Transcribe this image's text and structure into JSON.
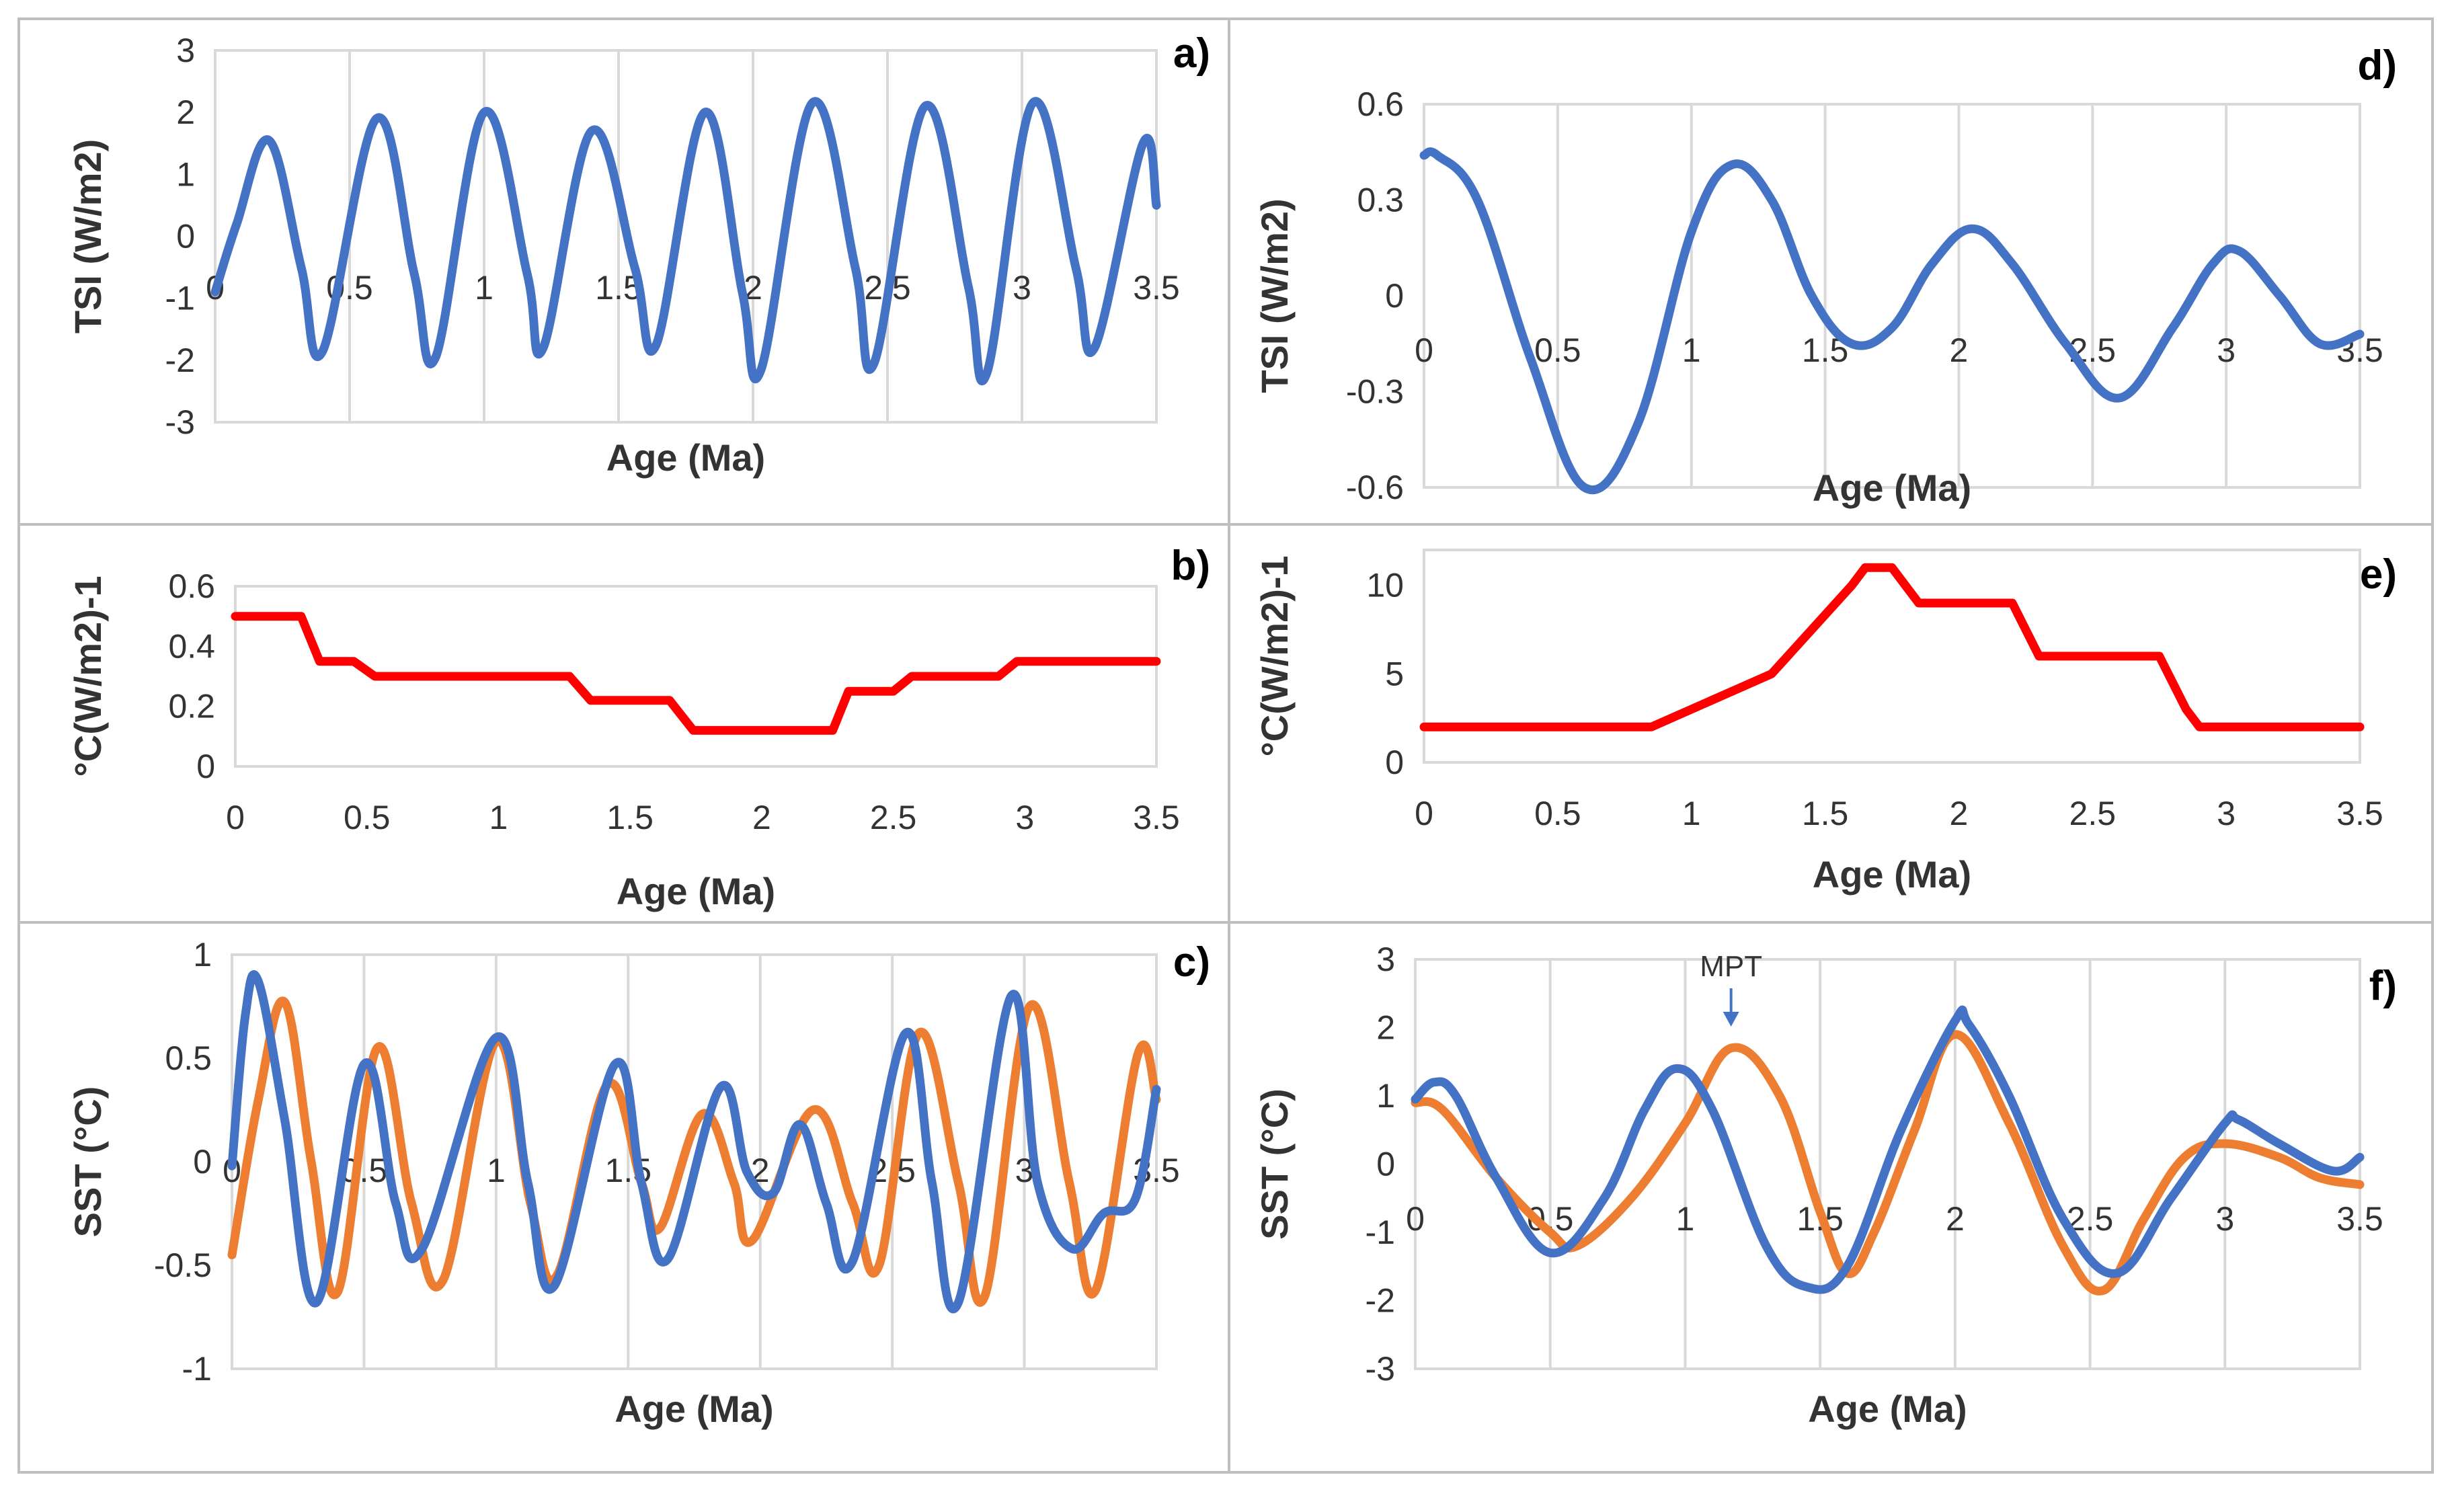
{
  "colors": {
    "blue": "#4472C4",
    "orange": "#ED7D31",
    "red": "#FF0000",
    "grid": "#D9D9D9"
  },
  "chart_data": [
    {
      "id": "a",
      "panel_label": "a)",
      "type": "line",
      "xlabel": "Age (Ma)",
      "ylabel": "TSI (W/m2)",
      "xlim": [
        0,
        3.5
      ],
      "ylim": [
        -3,
        3
      ],
      "xticks": [
        0,
        0.5,
        1,
        1.5,
        2,
        2.5,
        3,
        3.5
      ],
      "yticks": [
        -3,
        -2,
        -1,
        0,
        1,
        2,
        3
      ],
      "xtick_labels": [
        "0",
        "0.5",
        "1",
        "1.5",
        "2",
        "2.5",
        "3",
        "3.5"
      ],
      "ytick_labels": [
        "-3",
        "-2",
        "-1",
        "0",
        "1",
        "2",
        "3"
      ],
      "grid": "vertical",
      "series": [
        {
          "color": "#4472C4",
          "x": [
            0,
            0.08,
            0.2,
            0.32,
            0.4,
            0.6,
            0.74,
            0.82,
            1.0,
            1.16,
            1.22,
            1.4,
            1.56,
            1.64,
            1.82,
            1.96,
            2.03,
            2.22,
            2.38,
            2.45,
            2.64,
            2.8,
            2.87,
            3.04,
            3.2,
            3.27,
            3.45,
            3.5
          ],
          "y": [
            -0.9,
            0.2,
            1.55,
            -0.5,
            -1.85,
            1.9,
            -0.6,
            -1.95,
            2.0,
            -0.6,
            -1.8,
            1.7,
            -0.5,
            -1.75,
            2.0,
            -0.9,
            -2.15,
            2.15,
            -0.5,
            -2.05,
            2.1,
            -0.8,
            -2.2,
            2.15,
            -0.5,
            -1.8,
            1.5,
            0.5
          ]
        }
      ]
    },
    {
      "id": "b",
      "panel_label": "b)",
      "type": "line",
      "xlabel": "Age (Ma)",
      "ylabel": "°C(W/m2)-1",
      "xlim": [
        0,
        3.5
      ],
      "ylim": [
        0,
        0.6
      ],
      "xticks": [
        0,
        0.5,
        1,
        1.5,
        2,
        2.5,
        3,
        3.5
      ],
      "yticks": [
        0,
        0.2,
        0.4,
        0.6
      ],
      "xtick_labels": [
        "0",
        "0.5",
        "1",
        "1.5",
        "2",
        "2.5",
        "3",
        "3.5"
      ],
      "ytick_labels": [
        "0",
        "0.2",
        "0.4",
        "0.6"
      ],
      "grid": "none",
      "series": [
        {
          "color": "#FF0000",
          "x": [
            0,
            0.25,
            0.32,
            0.45,
            0.53,
            1.27,
            1.35,
            1.65,
            1.74,
            2.27,
            2.33,
            2.5,
            2.57,
            2.9,
            2.97,
            3.5
          ],
          "y": [
            0.5,
            0.5,
            0.35,
            0.35,
            0.3,
            0.3,
            0.22,
            0.22,
            0.12,
            0.12,
            0.25,
            0.25,
            0.3,
            0.3,
            0.35,
            0.35
          ]
        }
      ]
    },
    {
      "id": "c",
      "panel_label": "c)",
      "type": "line",
      "xlabel": "Age (Ma)",
      "ylabel": "SST (°C)",
      "xlim": [
        0,
        3.5
      ],
      "ylim": [
        -1,
        1
      ],
      "xticks": [
        0,
        0.5,
        1,
        1.5,
        2,
        2.5,
        3,
        3.5
      ],
      "yticks": [
        -1,
        -0.5,
        0,
        0.5,
        1
      ],
      "xtick_labels": [
        "0",
        "0.5",
        "1",
        "1.5",
        "2",
        "2.5",
        "3",
        "3.5"
      ],
      "ytick_labels": [
        "-1",
        "-0.5",
        "0",
        "0.5",
        "1"
      ],
      "grid": "vertical",
      "series": [
        {
          "color": "#ED7D31",
          "x": [
            0,
            0.1,
            0.2,
            0.3,
            0.4,
            0.55,
            0.68,
            0.8,
            1.0,
            1.13,
            1.23,
            1.42,
            1.55,
            1.62,
            1.78,
            1.9,
            1.97,
            2.2,
            2.35,
            2.45,
            2.6,
            2.75,
            2.85,
            3.02,
            3.17,
            3.27,
            3.43,
            3.5
          ],
          "y": [
            -0.45,
            0.3,
            0.77,
            0.0,
            -0.63,
            0.55,
            -0.2,
            -0.57,
            0.58,
            -0.2,
            -0.55,
            0.37,
            -0.1,
            -0.32,
            0.23,
            -0.1,
            -0.38,
            0.25,
            -0.2,
            -0.5,
            0.62,
            -0.1,
            -0.65,
            0.75,
            -0.1,
            -0.62,
            0.52,
            0.3
          ]
        },
        {
          "color": "#4472C4",
          "x": [
            0,
            0.05,
            0.1,
            0.2,
            0.32,
            0.5,
            0.62,
            0.72,
            1.0,
            1.12,
            1.22,
            1.45,
            1.55,
            1.65,
            1.85,
            1.95,
            2.05,
            2.15,
            2.25,
            2.35,
            2.55,
            2.65,
            2.75,
            2.95,
            3.05,
            3.18,
            3.3,
            3.42,
            3.5
          ],
          "y": [
            -0.02,
            0.7,
            0.87,
            0.2,
            -0.68,
            0.47,
            -0.2,
            -0.42,
            0.6,
            -0.1,
            -0.6,
            0.47,
            -0.1,
            -0.47,
            0.36,
            -0.05,
            -0.15,
            0.18,
            -0.2,
            -0.48,
            0.62,
            -0.1,
            -0.68,
            0.8,
            -0.1,
            -0.42,
            -0.25,
            -0.18,
            0.35
          ]
        }
      ]
    },
    {
      "id": "d",
      "panel_label": "d)",
      "type": "line",
      "xlabel": "Age (Ma)",
      "ylabel": "TSI (W/m2)",
      "xlim": [
        0,
        3.5
      ],
      "ylim": [
        -0.6,
        0.6
      ],
      "xticks": [
        0,
        0.5,
        1,
        1.5,
        2,
        2.5,
        3,
        3.5
      ],
      "yticks": [
        -0.6,
        -0.3,
        0,
        0.3,
        0.6
      ],
      "xtick_labels": [
        "0",
        "0.5",
        "1",
        "1.5",
        "2",
        "2.5",
        "3",
        "3.5"
      ],
      "ytick_labels": [
        "-0.6",
        "-0.3",
        "0",
        "0.3",
        "0.6"
      ],
      "grid": "vertical",
      "series": [
        {
          "color": "#4472C4",
          "x": [
            0,
            0.05,
            0.2,
            0.4,
            0.6,
            0.8,
            1.0,
            1.15,
            1.3,
            1.45,
            1.6,
            1.75,
            1.9,
            2.05,
            2.2,
            2.4,
            2.6,
            2.8,
            2.95,
            3.05,
            3.2,
            3.35,
            3.5
          ],
          "y": [
            0.44,
            0.44,
            0.3,
            -0.2,
            -0.6,
            -0.4,
            0.2,
            0.41,
            0.3,
            0.0,
            -0.15,
            -0.1,
            0.1,
            0.21,
            0.1,
            -0.15,
            -0.32,
            -0.1,
            0.1,
            0.14,
            0.0,
            -0.15,
            -0.12
          ]
        }
      ]
    },
    {
      "id": "e",
      "panel_label": "e)",
      "type": "line",
      "xlabel": "Age (Ma)",
      "ylabel": "°C(W/m2)-1",
      "xlim": [
        0,
        3.5
      ],
      "ylim": [
        0,
        12
      ],
      "xticks": [
        0,
        0.5,
        1,
        1.5,
        2,
        2.5,
        3,
        3.5
      ],
      "yticks": [
        0,
        5,
        10
      ],
      "xtick_labels": [
        "0",
        "0.5",
        "1",
        "1.5",
        "2",
        "2.5",
        "3",
        "3.5"
      ],
      "ytick_labels": [
        "0",
        "5",
        "10"
      ],
      "grid": "none",
      "series": [
        {
          "color": "#FF0000",
          "x": [
            0,
            0.85,
            1.3,
            1.6,
            1.65,
            1.75,
            1.8,
            1.85,
            2.2,
            2.3,
            2.75,
            2.85,
            2.9,
            3.5
          ],
          "y": [
            2,
            2,
            5,
            10,
            11,
            11,
            10,
            9,
            9,
            6,
            6,
            3,
            2,
            2
          ]
        }
      ]
    },
    {
      "id": "f",
      "panel_label": "f)",
      "type": "line",
      "xlabel": "Age (Ma)",
      "ylabel": "SST (°C)",
      "xlim": [
        0,
        3.5
      ],
      "ylim": [
        -3,
        3
      ],
      "xticks": [
        0,
        0.5,
        1,
        1.5,
        2,
        2.5,
        3,
        3.5
      ],
      "yticks": [
        -3,
        -2,
        -1,
        0,
        1,
        2,
        3
      ],
      "xtick_labels": [
        "0",
        "0.5",
        "1",
        "1.5",
        "2",
        "2.5",
        "3",
        "3.5"
      ],
      "ytick_labels": [
        "-3",
        "-2",
        "-1",
        "0",
        "1",
        "2",
        "3"
      ],
      "grid": "vertical",
      "annotation": {
        "text": "MPT",
        "x": 1.17,
        "arrow": true
      },
      "series": [
        {
          "color": "#ED7D31",
          "x": [
            0,
            0.1,
            0.3,
            0.5,
            0.6,
            0.8,
            1.0,
            1.17,
            1.35,
            1.5,
            1.6,
            1.7,
            1.85,
            2.0,
            2.2,
            2.4,
            2.55,
            2.7,
            2.85,
            3.0,
            3.2,
            3.35,
            3.5
          ],
          "y": [
            0.9,
            0.8,
            -0.2,
            -1.0,
            -1.2,
            -0.5,
            0.6,
            1.7,
            1.0,
            -0.7,
            -1.6,
            -1.0,
            0.5,
            1.9,
            0.6,
            -1.2,
            -1.85,
            -0.8,
            0.1,
            0.3,
            0.1,
            -0.2,
            -0.3
          ]
        },
        {
          "color": "#4472C4",
          "x": [
            0,
            0.07,
            0.15,
            0.3,
            0.5,
            0.7,
            0.85,
            0.97,
            1.1,
            1.3,
            1.45,
            1.6,
            1.8,
            2.0,
            2.05,
            2.2,
            2.4,
            2.6,
            2.8,
            3.0,
            3.05,
            3.2,
            3.4,
            3.5
          ],
          "y": [
            0.95,
            1.2,
            1.0,
            -0.2,
            -1.3,
            -0.5,
            0.8,
            1.4,
            0.8,
            -1.2,
            -1.8,
            -1.5,
            0.5,
            2.1,
            2.05,
            1.0,
            -0.8,
            -1.6,
            -0.5,
            0.6,
            0.65,
            0.3,
            -0.1,
            0.1
          ]
        }
      ]
    }
  ]
}
